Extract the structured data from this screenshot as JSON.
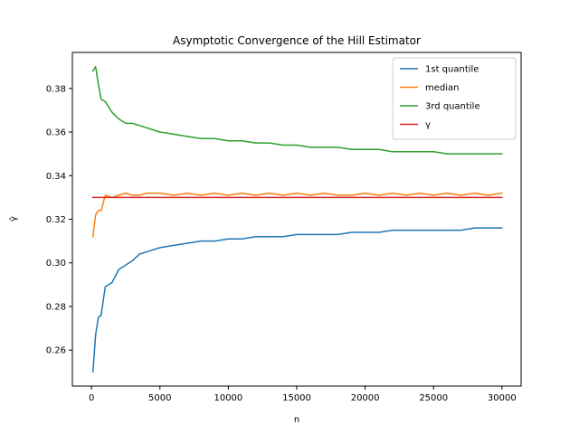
{
  "chart_data": {
    "type": "line",
    "title": "Asymptotic Convergence of the Hill Estimator",
    "xlabel": "n",
    "ylabel": "γ̂",
    "xlim": [
      -1400,
      31400
    ],
    "ylim": [
      0.2435,
      0.3965
    ],
    "xticks": [
      0,
      5000,
      10000,
      15000,
      20000,
      25000,
      30000
    ],
    "yticks": [
      0.26,
      0.28,
      0.3,
      0.32,
      0.34,
      0.36,
      0.38
    ],
    "ytick_labels": [
      "0.26",
      "0.28",
      "0.30",
      "0.32",
      "0.34",
      "0.36",
      "0.38"
    ],
    "grid": false,
    "legend_position": "top-right",
    "series": [
      {
        "name": "1st quantile",
        "color": "#1f77b4",
        "x": [
          100,
          300,
          500,
          700,
          1000,
          1500,
          2000,
          2500,
          3000,
          3500,
          4000,
          5000,
          6000,
          7000,
          8000,
          9000,
          10000,
          11000,
          12000,
          13000,
          14000,
          15000,
          16000,
          17000,
          18000,
          19000,
          20000,
          21000,
          22000,
          23000,
          24000,
          25000,
          26000,
          27000,
          28000,
          29000,
          30000
        ],
        "values": [
          0.25,
          0.267,
          0.275,
          0.276,
          0.289,
          0.291,
          0.297,
          0.299,
          0.301,
          0.304,
          0.305,
          0.307,
          0.308,
          0.309,
          0.31,
          0.31,
          0.311,
          0.311,
          0.312,
          0.312,
          0.312,
          0.313,
          0.313,
          0.313,
          0.313,
          0.314,
          0.314,
          0.314,
          0.315,
          0.315,
          0.315,
          0.315,
          0.315,
          0.315,
          0.316,
          0.316,
          0.316
        ]
      },
      {
        "name": "median",
        "color": "#ff7f0e",
        "x": [
          100,
          300,
          500,
          700,
          1000,
          1500,
          2000,
          2500,
          3000,
          3500,
          4000,
          5000,
          6000,
          7000,
          8000,
          9000,
          10000,
          11000,
          12000,
          13000,
          14000,
          15000,
          16000,
          17000,
          18000,
          19000,
          20000,
          21000,
          22000,
          23000,
          24000,
          25000,
          26000,
          27000,
          28000,
          29000,
          30000
        ],
        "values": [
          0.312,
          0.322,
          0.324,
          0.324,
          0.331,
          0.33,
          0.331,
          0.332,
          0.331,
          0.331,
          0.332,
          0.332,
          0.331,
          0.332,
          0.331,
          0.332,
          0.331,
          0.332,
          0.331,
          0.332,
          0.331,
          0.332,
          0.331,
          0.332,
          0.331,
          0.331,
          0.332,
          0.331,
          0.332,
          0.331,
          0.332,
          0.331,
          0.332,
          0.331,
          0.332,
          0.331,
          0.332
        ]
      },
      {
        "name": "3rd quantile",
        "color": "#2ca02c",
        "x": [
          100,
          300,
          500,
          700,
          1000,
          1500,
          2000,
          2500,
          3000,
          3500,
          4000,
          5000,
          6000,
          7000,
          8000,
          9000,
          10000,
          11000,
          12000,
          13000,
          14000,
          15000,
          16000,
          17000,
          18000,
          19000,
          20000,
          21000,
          22000,
          23000,
          24000,
          25000,
          26000,
          27000,
          28000,
          29000,
          30000
        ],
        "values": [
          0.388,
          0.39,
          0.382,
          0.375,
          0.374,
          0.369,
          0.366,
          0.364,
          0.364,
          0.363,
          0.362,
          0.36,
          0.359,
          0.358,
          0.357,
          0.357,
          0.356,
          0.356,
          0.355,
          0.355,
          0.354,
          0.354,
          0.353,
          0.353,
          0.353,
          0.352,
          0.352,
          0.352,
          0.351,
          0.351,
          0.351,
          0.351,
          0.35,
          0.35,
          0.35,
          0.35,
          0.35
        ]
      },
      {
        "name": "γ",
        "color": "#d62728",
        "x": [
          100,
          30000
        ],
        "values": [
          0.33,
          0.33
        ]
      }
    ]
  }
}
